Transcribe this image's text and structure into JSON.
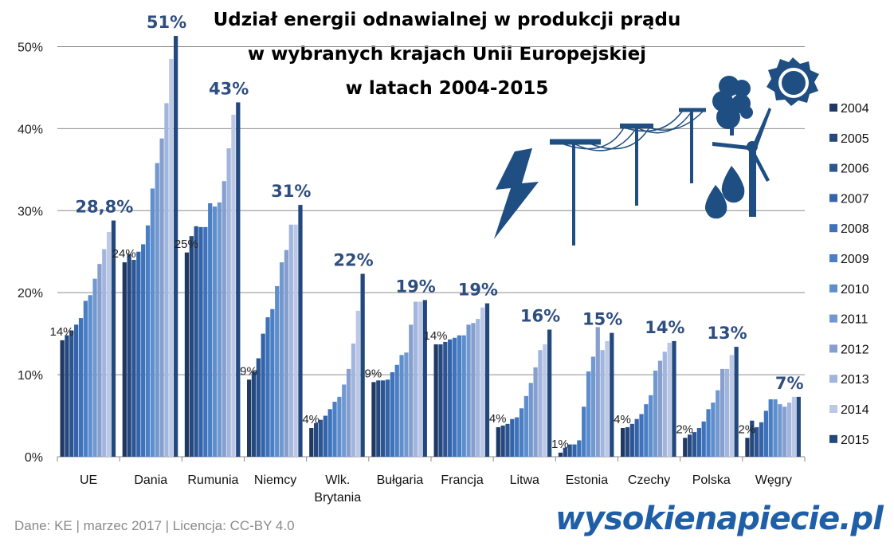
{
  "chart_data": {
    "type": "bar",
    "title_lines": [
      "Udział energii odnawialnej w produkcji prądu",
      "w wybranych krajach Unii Europejskiej",
      "w latach 2004-2015"
    ],
    "ylim": [
      0,
      0.55
    ],
    "yticks": [
      {
        "value": 0,
        "label": "0%"
      },
      {
        "value": 0.1,
        "label": "10%"
      },
      {
        "value": 0.2,
        "label": "20%"
      },
      {
        "value": 0.3,
        "label": "30%"
      },
      {
        "value": 0.4,
        "label": "40%"
      },
      {
        "value": 0.5,
        "label": "50%"
      }
    ],
    "grid": true,
    "legend_position": "right",
    "series_names": [
      "2004",
      "2005",
      "2006",
      "2007",
      "2008",
      "2009",
      "2010",
      "2011",
      "2012",
      "2013",
      "2014",
      "2015"
    ],
    "series_colors": [
      "#1F3864",
      "#25497E",
      "#2C5591",
      "#3363A8",
      "#3E72BA",
      "#4A7FC6",
      "#5E8ECC",
      "#7199D0",
      "#879FCE",
      "#A2B5DD",
      "#BCC8E6",
      "#22487E"
    ],
    "categories": [
      {
        "name": "UE",
        "values": [
          0.142,
          0.148,
          0.154,
          0.161,
          0.169,
          0.19,
          0.197,
          0.217,
          0.235,
          0.253,
          0.274,
          0.288
        ],
        "label_first": "14%",
        "label_last": "28,8%"
      },
      {
        "name": "Dania",
        "values": [
          0.237,
          0.247,
          0.24,
          0.25,
          0.259,
          0.282,
          0.327,
          0.358,
          0.388,
          0.431,
          0.485,
          0.513
        ],
        "label_first": "24%",
        "label_last": "51%"
      },
      {
        "name": "Rumunia",
        "values": [
          0.249,
          0.269,
          0.281,
          0.28,
          0.28,
          0.309,
          0.305,
          0.31,
          0.336,
          0.376,
          0.417,
          0.432
        ],
        "label_first": "25%",
        "label_last": "43%"
      },
      {
        "name": "Niemcy",
        "values": [
          0.094,
          0.104,
          0.12,
          0.15,
          0.17,
          0.18,
          0.208,
          0.237,
          0.252,
          0.283,
          0.283,
          0.307
        ],
        "label_first": "9%",
        "label_last": "31%"
      },
      {
        "name": "Wlk. Brytania",
        "values": [
          0.035,
          0.041,
          0.045,
          0.05,
          0.058,
          0.067,
          0.073,
          0.088,
          0.107,
          0.138,
          0.178,
          0.223
        ],
        "label_first": "4%",
        "label_last": "22%"
      },
      {
        "name": "Bułgaria",
        "values": [
          0.091,
          0.093,
          0.093,
          0.094,
          0.103,
          0.112,
          0.124,
          0.127,
          0.161,
          0.189,
          0.189,
          0.191
        ],
        "label_first": "9%",
        "label_last": "19%"
      },
      {
        "name": "Francja",
        "values": [
          0.137,
          0.137,
          0.14,
          0.143,
          0.145,
          0.148,
          0.148,
          0.161,
          0.163,
          0.168,
          0.182,
          0.187
        ],
        "label_first": "14%",
        "label_last": "19%"
      },
      {
        "name": "Litwa",
        "values": [
          0.036,
          0.038,
          0.04,
          0.046,
          0.048,
          0.059,
          0.074,
          0.09,
          0.109,
          0.13,
          0.137,
          0.155
        ],
        "label_first": "4%",
        "label_last": "16%"
      },
      {
        "name": "Estonia",
        "values": [
          0.005,
          0.011,
          0.015,
          0.015,
          0.02,
          0.061,
          0.104,
          0.122,
          0.158,
          0.13,
          0.141,
          0.151
        ],
        "label_first": "1%",
        "label_last": "15%"
      },
      {
        "name": "Czechy",
        "values": [
          0.035,
          0.036,
          0.04,
          0.046,
          0.052,
          0.064,
          0.075,
          0.105,
          0.117,
          0.128,
          0.139,
          0.141
        ],
        "label_first": "4%",
        "label_last": "14%"
      },
      {
        "name": "Polska",
        "values": [
          0.023,
          0.027,
          0.03,
          0.035,
          0.043,
          0.058,
          0.066,
          0.081,
          0.107,
          0.107,
          0.124,
          0.134
        ],
        "label_first": "2%",
        "label_last": "13%"
      },
      {
        "name": "Węgry",
        "values": [
          0.023,
          0.044,
          0.036,
          0.042,
          0.056,
          0.07,
          0.07,
          0.064,
          0.061,
          0.066,
          0.073,
          0.073
        ],
        "label_first": "2%",
        "label_last": "7%"
      }
    ]
  },
  "footer": {
    "text": "Dane: KE  |  marzec 2017  |  Licencja: CC-BY 4.0"
  },
  "brand": {
    "text": "wysokienapiecie.pl"
  },
  "decor": {
    "icons": [
      "lightning-icon",
      "power-line-icon",
      "tree-icon",
      "sun-icon",
      "wind-turbine-icon",
      "water-drop-icon"
    ]
  }
}
